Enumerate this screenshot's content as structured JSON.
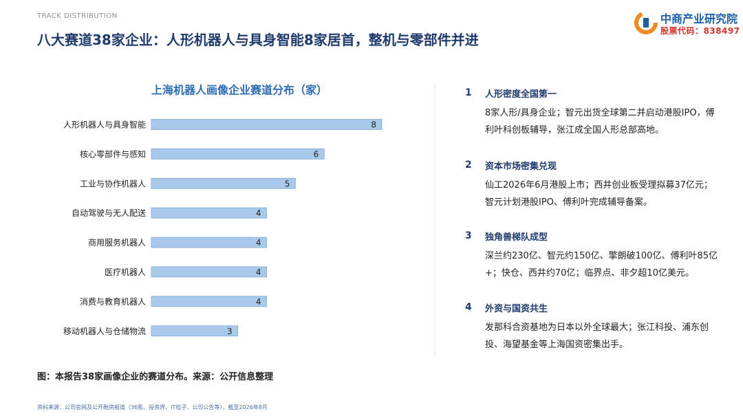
{
  "header": {
    "kicker": "TRACK DISTRIBUTION",
    "title": "八大赛道38家企业：人形机器人与具身智能8家居首，整机与零部件并进"
  },
  "logo": {
    "name": "中商产业研究院",
    "stock": "股票代码：838497"
  },
  "chart_data": {
    "type": "bar",
    "orientation": "horizontal",
    "title": "上海机器人画像企业赛道分布（家）",
    "categories": [
      "人形机器人与具身智能",
      "核心零部件与感知",
      "工业与协作机器人",
      "自动驾驶与无人配送",
      "商用服务机器人",
      "医疗机器人",
      "消费与教育机器人",
      "移动机器人与仓储物流"
    ],
    "values": [
      8,
      6,
      5,
      4,
      4,
      4,
      4,
      3
    ],
    "color": "#a9c9ea",
    "xlim": [
      0,
      8
    ]
  },
  "points": [
    {
      "number": "1",
      "heading": "人形密度全国第一",
      "body": "8家人形/具身企业；智元出货全球第二并启动港股IPO，傅利叶科创板辅导，张江成全国人形总部高地。"
    },
    {
      "number": "2",
      "heading": "资本市场密集兑现",
      "body": "仙工2026年6月港股上市；西井创业板受理拟募37亿元；智元计划港股IPO、傅利叶完成辅导备案。"
    },
    {
      "number": "3",
      "heading": "独角兽梯队成型",
      "body": "深兰约230亿、智元约150亿、擎朗破100亿、傅利叶85亿+；快仓、西井约70亿；临界点、非夕超10亿美元。"
    },
    {
      "number": "4",
      "heading": "外资与国资共生",
      "body": "发那科合资基地为日本以外全球最大；张江科投、浦东创投、海望基金等上海国资密集出手。"
    }
  ],
  "caption": "图：本报告38家画像企业的赛道分布。来源：公开信息整理",
  "source": "资料来源：公司官网及公开融资报道（36氪、投资界、IT桔子、公司公告等），截至2026年8月"
}
